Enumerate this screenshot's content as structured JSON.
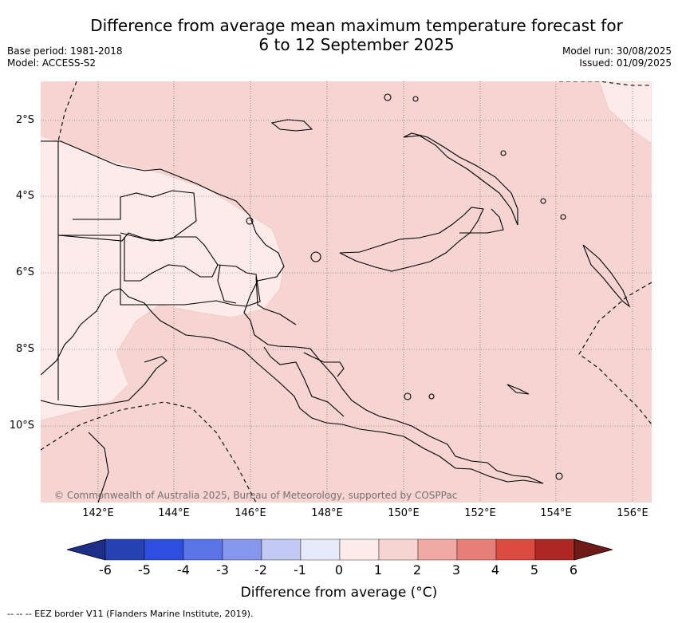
{
  "title": {
    "line1": "Difference from average mean maximum temperature forecast for",
    "line2": "6 to 12 September 2025"
  },
  "meta_left": {
    "base_period": "Base period: 1981-2018",
    "model": "Model: ACCESS-S2"
  },
  "meta_right": {
    "model_run": "Model run: 30/08/2025",
    "issued": "Issued: 01/09/2025"
  },
  "map": {
    "lat_labels": [
      "2°S",
      "4°S",
      "6°S",
      "8°S",
      "10°S"
    ],
    "lon_labels": [
      "142°E",
      "144°E",
      "146°E",
      "148°E",
      "150°E",
      "152°E",
      "154°E",
      "156°E"
    ],
    "copyright": "© Commonwealth of Australia 2025, Bureau of Meteorology, supported by COSPPac",
    "background_class_color": "#f5d4d1",
    "lighter_class_color": "#fcebe9"
  },
  "colorbar": {
    "title": "Difference from average (°C)",
    "tick_labels": [
      "-6",
      "-5",
      "-4",
      "-3",
      "-2",
      "-1",
      "0",
      "1",
      "2",
      "3",
      "4",
      "5",
      "6"
    ],
    "colors": [
      "#1d2e86",
      "#2541b3",
      "#2e4ee0",
      "#5a73e6",
      "#8797ec",
      "#c2c9f3",
      "#e6eafb",
      "#fcebe9",
      "#f5d4d1",
      "#f0aaa5",
      "#e67f78",
      "#dc4a40",
      "#ae2722",
      "#6e1a17"
    ]
  },
  "footer": "--  --  -- EEZ border V11 (Flanders Marine Institute, 2019)."
}
